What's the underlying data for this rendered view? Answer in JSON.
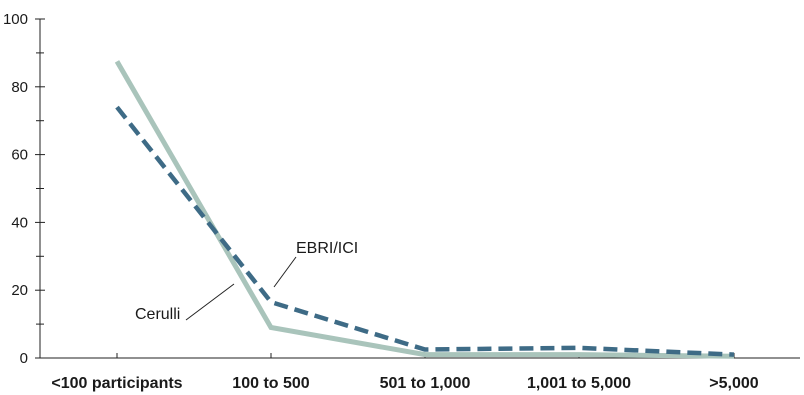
{
  "chart_data": {
    "type": "line",
    "categories": [
      "<100 participants",
      "100 to 500",
      "501 to 1,000",
      "1,001 to 5,000",
      ">5,000"
    ],
    "series": [
      {
        "name": "Cerulli",
        "values": [
          87.5,
          9.0,
          1.0,
          1.0,
          0.5
        ],
        "color": "#a9c4bb",
        "style": "solid"
      },
      {
        "name": "EBRI/ICI",
        "values": [
          74.0,
          16.5,
          2.5,
          3.0,
          1.0
        ],
        "color": "#3e6b86",
        "style": "dashed"
      }
    ],
    "y_ticks": [
      0,
      20,
      40,
      60,
      80,
      100
    ],
    "ylim": [
      0,
      100
    ],
    "title": "",
    "xlabel": "",
    "ylabel": "",
    "grid": false,
    "legend": "inline labels with leader lines"
  }
}
